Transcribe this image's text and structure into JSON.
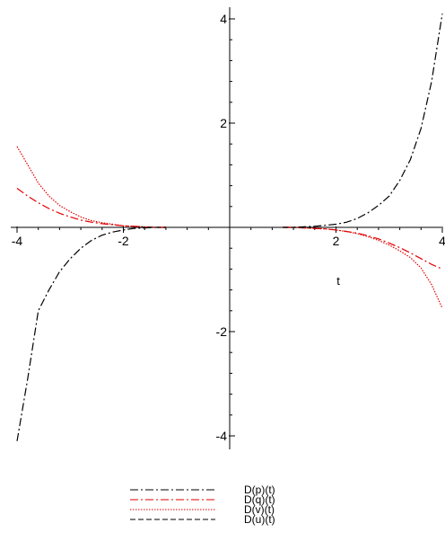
{
  "chart_data": {
    "type": "line",
    "title": "",
    "xlabel": "t",
    "ylabel": "",
    "xlim": [
      -4,
      4
    ],
    "ylim": [
      -4.2,
      4.2
    ],
    "x_ticks": [
      -4,
      -2,
      2,
      4
    ],
    "y_ticks": [
      -4,
      -2,
      2,
      4
    ],
    "x_tick_labels": [
      "-4",
      "-2",
      "2",
      "4"
    ],
    "y_tick_labels": [
      "-4",
      "-2",
      "2",
      "4"
    ],
    "grid": false,
    "legend_position": "bottom-center",
    "series": [
      {
        "name": "D(p)(t)",
        "color": "#000000",
        "dash": "dashdot",
        "segments": [
          [
            [
              -4.0,
              -4.1
            ],
            [
              -3.8,
              -2.9
            ],
            [
              -3.6,
              -1.6
            ],
            [
              -3.4,
              -1.2
            ],
            [
              -3.2,
              -0.85
            ],
            [
              -3.0,
              -0.6
            ],
            [
              -2.8,
              -0.4
            ],
            [
              -2.6,
              -0.25
            ],
            [
              -2.4,
              -0.15
            ],
            [
              -2.2,
              -0.09
            ],
            [
              -2.0,
              -0.05
            ],
            [
              -1.8,
              -0.02
            ],
            [
              -1.6,
              -0.01
            ],
            [
              -1.4,
              0.0
            ],
            [
              -1.2,
              0.0
            ]
          ],
          [
            [
              1.0,
              0.0
            ],
            [
              1.2,
              0.0
            ],
            [
              1.4,
              0.01
            ],
            [
              1.6,
              0.02
            ],
            [
              1.8,
              0.04
            ],
            [
              2.0,
              0.06
            ],
            [
              2.2,
              0.1
            ],
            [
              2.4,
              0.17
            ],
            [
              2.6,
              0.28
            ],
            [
              2.8,
              0.42
            ],
            [
              3.0,
              0.6
            ],
            [
              3.2,
              0.9
            ],
            [
              3.4,
              1.3
            ],
            [
              3.6,
              1.9
            ],
            [
              3.8,
              2.8
            ],
            [
              4.0,
              4.1
            ]
          ]
        ]
      },
      {
        "name": "D(q)(t)",
        "color": "#e00000",
        "dash": "dashdot",
        "segments": [
          [
            [
              -4.0,
              0.75
            ],
            [
              -3.8,
              0.6
            ],
            [
              -3.6,
              0.47
            ],
            [
              -3.4,
              0.36
            ],
            [
              -3.2,
              0.27
            ],
            [
              -3.0,
              0.2
            ],
            [
              -2.8,
              0.14
            ],
            [
              -2.6,
              0.1
            ],
            [
              -2.4,
              0.07
            ],
            [
              -2.2,
              0.05
            ],
            [
              -2.0,
              0.03
            ],
            [
              -1.8,
              0.02
            ],
            [
              -1.6,
              0.01
            ],
            [
              -1.4,
              0.0
            ],
            [
              -1.2,
              0.0
            ]
          ],
          [
            [
              1.0,
              0.0
            ],
            [
              1.2,
              0.0
            ],
            [
              1.4,
              -0.01
            ],
            [
              1.6,
              -0.02
            ],
            [
              1.8,
              -0.03
            ],
            [
              2.0,
              -0.05
            ],
            [
              2.2,
              -0.08
            ],
            [
              2.4,
              -0.11
            ],
            [
              2.6,
              -0.16
            ],
            [
              2.8,
              -0.22
            ],
            [
              3.0,
              -0.3
            ],
            [
              3.2,
              -0.39
            ],
            [
              3.4,
              -0.49
            ],
            [
              3.6,
              -0.6
            ],
            [
              3.8,
              -0.71
            ],
            [
              4.0,
              -0.8
            ]
          ]
        ]
      },
      {
        "name": "D(v)(t)",
        "color": "#e00000",
        "dash": "dotted",
        "segments": [
          [
            [
              -4.0,
              1.55
            ],
            [
              -3.8,
              1.2
            ],
            [
              -3.6,
              0.85
            ],
            [
              -3.4,
              0.6
            ],
            [
              -3.2,
              0.42
            ],
            [
              -3.0,
              0.3
            ],
            [
              -2.8,
              0.2
            ],
            [
              -2.6,
              0.13
            ],
            [
              -2.4,
              0.09
            ],
            [
              -2.2,
              0.06
            ],
            [
              -2.0,
              0.03
            ],
            [
              -1.8,
              0.02
            ],
            [
              -1.6,
              0.01
            ],
            [
              -1.4,
              0.0
            ],
            [
              -1.2,
              0.0
            ]
          ],
          [
            [
              1.0,
              0.0
            ],
            [
              1.2,
              0.0
            ],
            [
              1.4,
              -0.01
            ],
            [
              1.6,
              -0.02
            ],
            [
              1.8,
              -0.03
            ],
            [
              2.0,
              -0.05
            ],
            [
              2.2,
              -0.08
            ],
            [
              2.4,
              -0.12
            ],
            [
              2.6,
              -0.18
            ],
            [
              2.8,
              -0.25
            ],
            [
              3.0,
              -0.34
            ],
            [
              3.2,
              -0.45
            ],
            [
              3.4,
              -0.58
            ],
            [
              3.6,
              -0.78
            ],
            [
              3.8,
              -1.1
            ],
            [
              4.0,
              -1.55
            ]
          ]
        ]
      },
      {
        "name": "D(u)(t)",
        "color": "#000000",
        "dash": "dashed",
        "segments": [
          [
            [
              -1.7,
              0.0
            ],
            [
              -1.2,
              0.0
            ]
          ],
          [
            [
              1.0,
              0.0
            ],
            [
              1.6,
              0.0
            ]
          ]
        ]
      }
    ]
  }
}
